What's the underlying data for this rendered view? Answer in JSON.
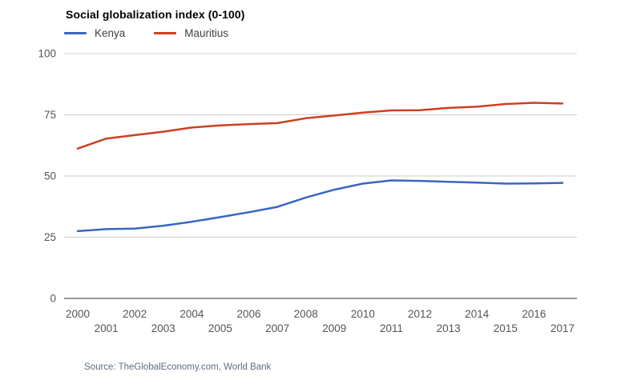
{
  "header": {
    "title": "Social globalization index (0-100)"
  },
  "legend": [
    {
      "label": "Kenya",
      "color": "#3a66c2"
    },
    {
      "label": "Mauritius",
      "color": "#cc4021"
    }
  ],
  "footer": {
    "source": "Source: TheGlobalEconomy.com, World Bank"
  },
  "chart_data": {
    "type": "line",
    "title": "Social globalization index (0-100)",
    "xlabel": "",
    "ylabel": "",
    "x": [
      2000,
      2001,
      2002,
      2003,
      2004,
      2005,
      2006,
      2007,
      2008,
      2009,
      2010,
      2011,
      2012,
      2013,
      2014,
      2015,
      2016,
      2017
    ],
    "series": [
      {
        "name": "Kenya",
        "color": "#3a66c2",
        "values": [
          27.5,
          28.3,
          28.5,
          29.7,
          31.3,
          33.2,
          35.2,
          37.4,
          41.2,
          44.4,
          46.9,
          48.2,
          48.0,
          47.6,
          47.3,
          46.9,
          47.0,
          47.2
        ]
      },
      {
        "name": "Mauritius",
        "color": "#cc4021",
        "values": [
          61.2,
          65.3,
          66.7,
          68.1,
          69.8,
          70.7,
          71.2,
          71.6,
          73.6,
          74.7,
          75.9,
          76.8,
          76.9,
          77.8,
          78.3,
          79.4,
          79.9,
          79.6
        ]
      }
    ],
    "ylim": [
      0,
      100
    ],
    "yticks": [
      0,
      25,
      50,
      75,
      100
    ],
    "grid": true,
    "legend_position": "top-left",
    "tick_color": "#555555",
    "grid_color": "#cccccc",
    "axis_color": "#333333",
    "source": "Source: TheGlobalEconomy.com, World Bank"
  }
}
